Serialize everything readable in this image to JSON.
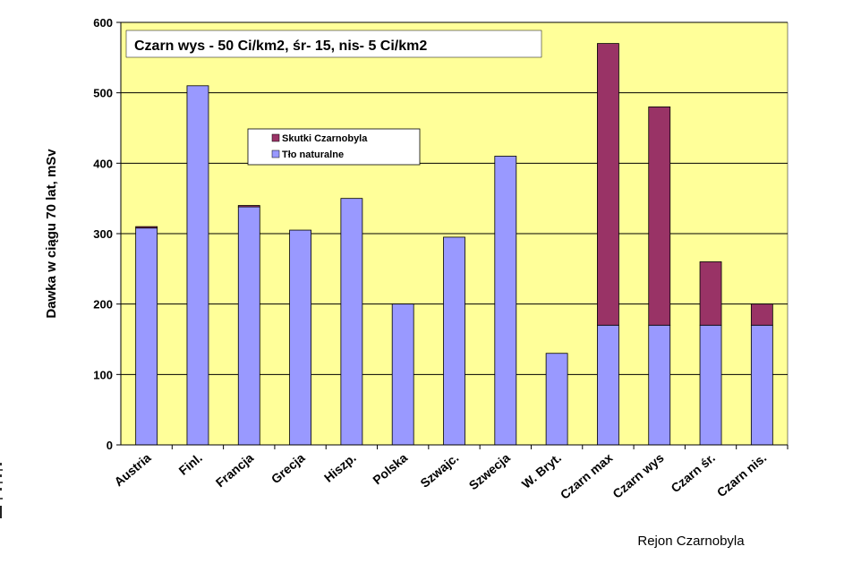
{
  "chart_data": {
    "type": "bar",
    "stacked": true,
    "title": "Czarn  wys - 50 Ci/km2,  śr- 15,  nis- 5 Ci/km2",
    "ylabel": "Dawka w ciągu 70 lat,  mSv",
    "xlabel": "Rejon Czarnobyla",
    "ylim": [
      0,
      600
    ],
    "yticks": [
      0,
      100,
      200,
      300,
      400,
      500,
      600
    ],
    "categories": [
      "Austria",
      "Finl.",
      "Francja",
      "Grecja",
      "Hiszp.",
      "Polska",
      "Szwajc.",
      "Szwecja",
      "W. Bryt.",
      "Czarn max",
      "Czarn wys",
      "Czarn śr.",
      "Czarn nis."
    ],
    "series": [
      {
        "name": "Tło naturalne",
        "color": "#9999ff",
        "values": [
          308,
          510,
          338,
          305,
          350,
          200,
          295,
          410,
          130,
          170,
          170,
          170,
          170
        ]
      },
      {
        "name": "Skutki Czarnobyla",
        "color": "#993366",
        "values": [
          2,
          0,
          2,
          0,
          0,
          0,
          0,
          0,
          0,
          400,
          310,
          90,
          30
        ]
      }
    ],
    "legend": {
      "position": "upper-left",
      "order": [
        "Skutki Czarnobyla",
        "Tło naturalne"
      ]
    },
    "plot_background": "#ffff99",
    "gridlines": true
  }
}
